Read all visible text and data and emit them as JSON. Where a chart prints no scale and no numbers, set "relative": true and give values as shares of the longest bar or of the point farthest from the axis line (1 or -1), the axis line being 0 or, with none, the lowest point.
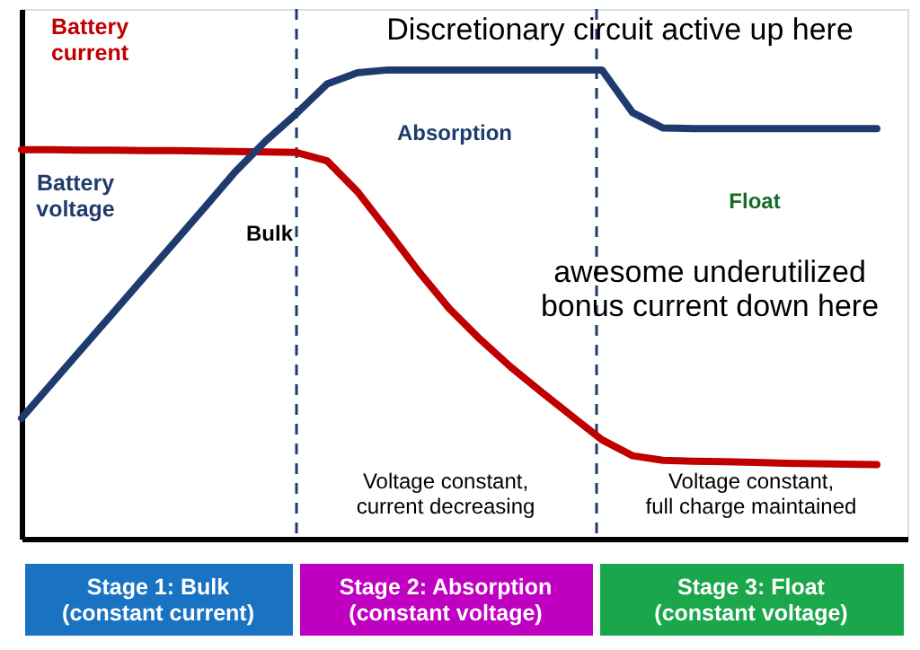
{
  "chart_data": {
    "type": "line",
    "relative": true,
    "tick_labels": false,
    "grid": false,
    "legend": false,
    "line_style": "solid",
    "marker": "none",
    "categories": [
      null,
      null,
      null,
      null,
      null,
      null,
      null,
      null,
      null,
      null,
      null,
      null,
      null,
      null,
      null,
      null,
      null,
      null,
      null,
      null,
      null,
      null,
      null,
      null,
      null,
      null,
      null,
      null,
      null,
      null
    ],
    "series": [
      {
        "name": "Battery current",
        "color": "#c00000",
        "values": [
          0.83,
          0.83,
          0.829,
          0.829,
          0.828,
          0.828,
          0.827,
          0.826,
          0.825,
          0.824,
          0.806,
          0.74,
          0.656,
          0.57,
          0.491,
          0.426,
          0.367,
          0.314,
          0.262,
          0.211,
          0.177,
          0.167,
          0.165,
          0.164,
          0.163,
          0.161,
          0.16,
          0.159,
          0.158,
          null
        ]
      },
      {
        "name": "Battery voltage",
        "color": "#1f3b6e",
        "values": [
          0.257,
          0.332,
          0.407,
          0.482,
          0.557,
          0.632,
          0.707,
          0.783,
          0.849,
          0.907,
          0.97,
          0.994,
          1.0,
          1.0,
          1.0,
          1.0,
          1.0,
          1.0,
          1.0,
          1.0,
          0.909,
          0.876,
          0.875,
          0.875,
          0.875,
          0.875,
          0.875,
          0.875,
          0.875,
          null
        ]
      }
    ],
    "annotations": [
      "Discretionary circuit active up here",
      "Absorption",
      "Float",
      "awesome underutilized\nbonus current down here",
      "Bulk",
      "Voltage constant,\ncurrent decreasing",
      "Voltage constant,\nfull charge maintained",
      "Stage 1:  Bulk\n(constant current)",
      "Stage 2:  Absorption\n(constant voltage)",
      "Stage 3:  Float\n(constant voltage)"
    ]
  }
}
